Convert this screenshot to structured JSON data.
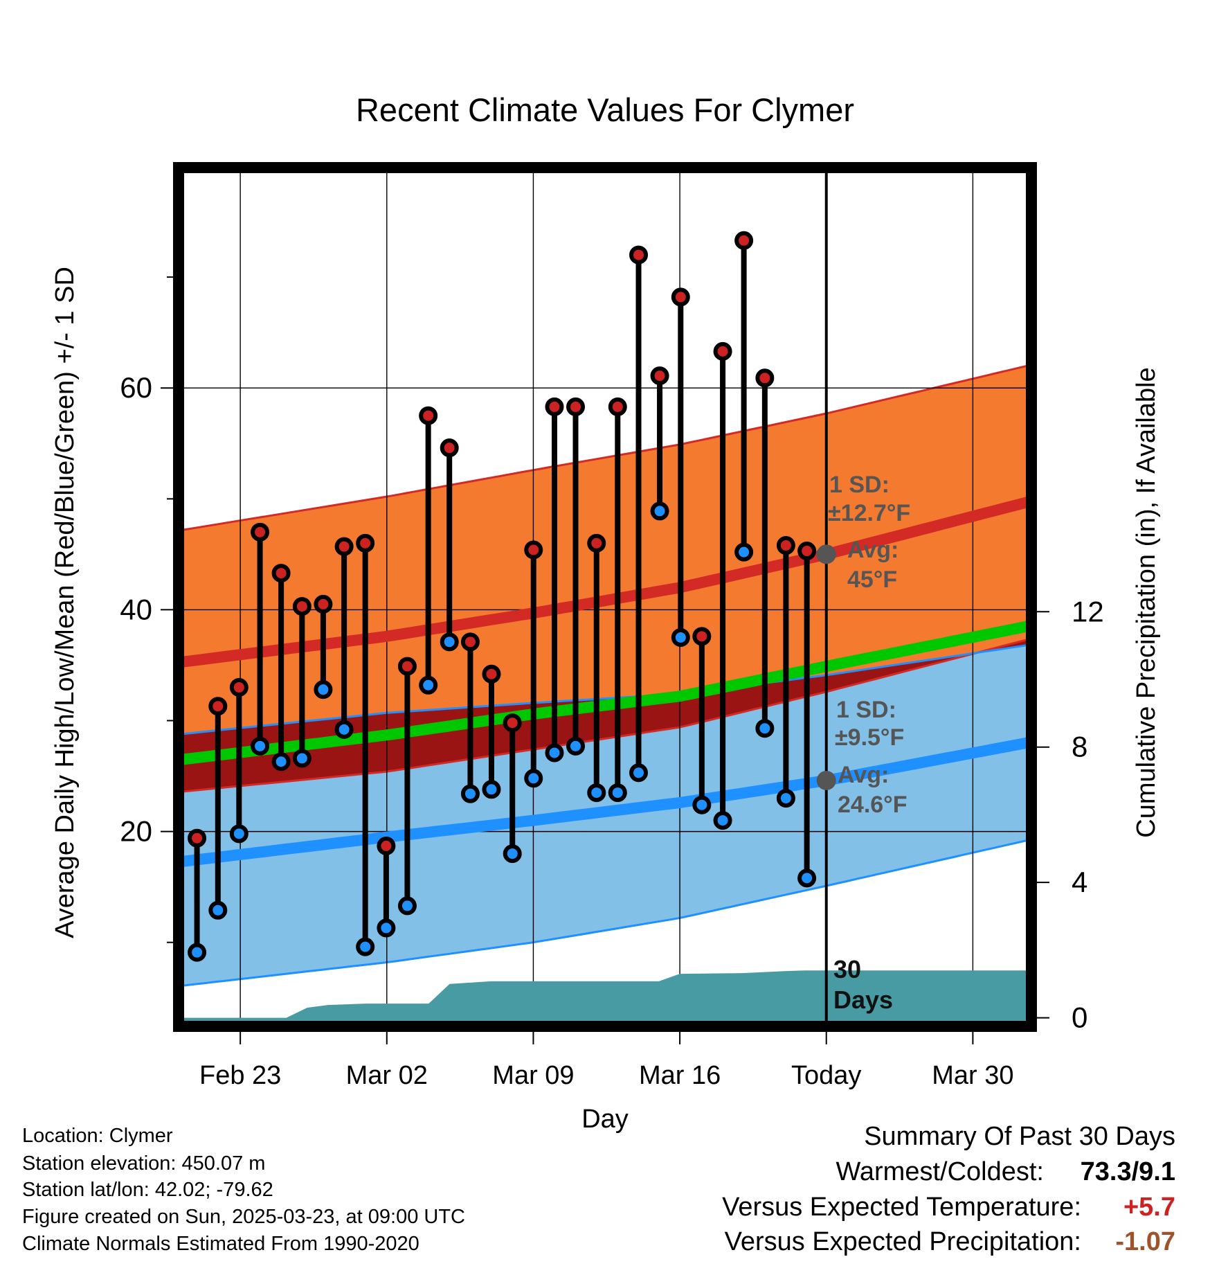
{
  "chart_data": {
    "type": "line",
    "title": "Recent Climate Values For Clymer",
    "xlabel": "Day",
    "ylabel_left": "Average Daily High/Low/Mean (Red/Blue/Green) +/- 1 SD",
    "ylabel_right": "Cumulative Precipitation (in), If Available",
    "x_ticks": [
      {
        "day": 2,
        "label": "Feb 23"
      },
      {
        "day": 9,
        "label": "Mar 02"
      },
      {
        "day": 16,
        "label": "Mar 09"
      },
      {
        "day": 23,
        "label": "Mar 16"
      },
      {
        "day": 30,
        "label": "Today"
      },
      {
        "day": 37,
        "label": "Mar 30"
      }
    ],
    "x_range": [
      -0.75,
      39.6
    ],
    "y_left_range": [
      2.8,
      79.5
    ],
    "y_left_ticks": [
      20,
      40,
      60
    ],
    "y_left_minor_ticks": [
      10,
      30,
      50,
      70
    ],
    "y_right_range": [
      -0.13,
      25.0
    ],
    "y_right_ticks": [
      0,
      4,
      8,
      12
    ],
    "grid": true,
    "today_day": 30,
    "normals": {
      "high_avg": [
        [
          -0.75,
          35.3
        ],
        [
          9,
          37.6
        ],
        [
          16,
          39.7
        ],
        [
          23,
          42.0
        ],
        [
          30,
          45.0
        ],
        [
          39.6,
          49.7
        ]
      ],
      "high_upper": [
        [
          -0.75,
          47.2
        ],
        [
          9,
          50.2
        ],
        [
          16,
          52.6
        ],
        [
          23,
          54.9
        ],
        [
          30,
          57.7
        ],
        [
          39.6,
          62.0
        ]
      ],
      "high_lower": [
        [
          -0.75,
          23.6
        ],
        [
          9,
          25.4
        ],
        [
          16,
          27.4
        ],
        [
          23,
          29.4
        ],
        [
          30,
          32.6
        ],
        [
          39.6,
          37.3
        ]
      ],
      "low_avg": [
        [
          -0.75,
          17.3
        ],
        [
          9,
          19.5
        ],
        [
          16,
          21.0
        ],
        [
          23,
          22.6
        ],
        [
          30,
          24.6
        ],
        [
          39.6,
          28.0
        ]
      ],
      "low_upper": [
        [
          -0.75,
          28.8
        ],
        [
          9,
          30.7
        ],
        [
          16,
          31.6
        ],
        [
          23,
          32.4
        ],
        [
          30,
          34.1
        ],
        [
          39.6,
          36.8
        ]
      ],
      "low_lower": [
        [
          -0.75,
          6.1
        ],
        [
          9,
          8.2
        ],
        [
          16,
          10.0
        ],
        [
          23,
          12.2
        ],
        [
          30,
          15.1
        ],
        [
          39.6,
          19.2
        ]
      ],
      "mean_avg": [
        [
          -0.75,
          26.5
        ],
        [
          9,
          28.7
        ],
        [
          16,
          30.6
        ],
        [
          23,
          32.2
        ],
        [
          30,
          34.9
        ],
        [
          39.6,
          38.5
        ]
      ]
    },
    "series": [
      {
        "name": "High",
        "color": "#cc2222",
        "values": [
          [
            -0.07,
            19.4
          ],
          [
            0.93,
            31.3
          ],
          [
            1.94,
            33.0
          ],
          [
            2.94,
            47.0
          ],
          [
            3.95,
            43.3
          ],
          [
            4.95,
            40.3
          ],
          [
            5.96,
            40.5
          ],
          [
            6.96,
            45.7
          ],
          [
            7.97,
            46.0
          ],
          [
            8.97,
            18.7
          ],
          [
            9.98,
            34.9
          ],
          [
            10.98,
            57.5
          ],
          [
            11.99,
            54.6
          ],
          [
            12.99,
            37.1
          ],
          [
            14.0,
            34.2
          ],
          [
            15.0,
            29.8
          ],
          [
            16.01,
            45.4
          ],
          [
            17.01,
            58.3
          ],
          [
            18.02,
            58.3
          ],
          [
            19.02,
            46.0
          ],
          [
            20.03,
            58.3
          ],
          [
            21.03,
            72.0
          ],
          [
            22.04,
            61.1
          ],
          [
            23.04,
            68.2
          ],
          [
            24.05,
            37.6
          ],
          [
            25.05,
            63.3
          ],
          [
            26.06,
            73.3
          ],
          [
            27.06,
            60.9
          ],
          [
            28.07,
            45.8
          ],
          [
            29.07,
            45.3
          ]
        ]
      },
      {
        "name": "Low",
        "color": "#1e90ff",
        "values": [
          [
            -0.07,
            9.1
          ],
          [
            0.93,
            12.9
          ],
          [
            1.94,
            19.8
          ],
          [
            2.94,
            27.7
          ],
          [
            3.95,
            26.3
          ],
          [
            4.95,
            26.6
          ],
          [
            5.96,
            32.8
          ],
          [
            6.96,
            29.2
          ],
          [
            7.97,
            9.6
          ],
          [
            8.97,
            11.3
          ],
          [
            9.98,
            13.3
          ],
          [
            10.98,
            33.2
          ],
          [
            11.99,
            37.1
          ],
          [
            12.99,
            23.4
          ],
          [
            14.0,
            23.8
          ],
          [
            15.0,
            18.0
          ],
          [
            16.01,
            24.8
          ],
          [
            17.01,
            27.1
          ],
          [
            18.02,
            27.7
          ],
          [
            19.02,
            23.5
          ],
          [
            20.03,
            23.5
          ],
          [
            21.03,
            25.3
          ],
          [
            22.04,
            48.9
          ],
          [
            23.04,
            37.5
          ],
          [
            24.05,
            22.4
          ],
          [
            25.05,
            21.0
          ],
          [
            26.06,
            45.2
          ],
          [
            27.06,
            29.3
          ],
          [
            28.07,
            23.0
          ],
          [
            29.07,
            15.8
          ]
        ]
      },
      {
        "name": "Cumulative Precipitation",
        "color": "#489aa3",
        "values": [
          [
            -0.75,
            0
          ],
          [
            4.2,
            0
          ],
          [
            5.2,
            0.3
          ],
          [
            6.2,
            0.38
          ],
          [
            8.0,
            0.42
          ],
          [
            9.5,
            0.42
          ],
          [
            11.0,
            0.42
          ],
          [
            12.0,
            1.0
          ],
          [
            14.0,
            1.08
          ],
          [
            17.0,
            1.08
          ],
          [
            22.0,
            1.08
          ],
          [
            23.0,
            1.3
          ],
          [
            26.0,
            1.32
          ],
          [
            28.0,
            1.38
          ],
          [
            29.0,
            1.4
          ],
          [
            39.6,
            1.4
          ]
        ]
      }
    ],
    "annotations": {
      "high_sd_label": "1 SD:",
      "high_sd_value": "±12.7°F",
      "high_avg_label": "Avg:",
      "high_avg_value": "45°F",
      "high_avg_marker": 45.0,
      "low_sd_label": "1 SD:",
      "low_sd_value": "±9.5°F",
      "low_avg_label": "Avg:",
      "low_avg_value": "24.6°F",
      "low_avg_marker": 24.6,
      "precip_days_number": "30",
      "precip_days_word": "Days"
    },
    "colors": {
      "high_band": "#f47a30",
      "high_band_edge": "#d42a26",
      "high_line": "#d42a26",
      "low_band": "#82c0e8",
      "low_band_edge": "#1e90ff",
      "low_line": "#1e90ff",
      "overlap_band": "#9a1414",
      "mean_line": "#00c800",
      "precip_fill": "#489aa3",
      "annotation_text": "#555555"
    }
  },
  "footer": {
    "location": "Location: Clymer",
    "elevation": "Station elevation: 450.07 m",
    "latlon": "Station lat/lon: 42.02; -79.62",
    "created": "Figure created on Sun, 2025-03-23, at 09:00 UTC",
    "normals": "Climate Normals Estimated From 1990-2020"
  },
  "summary": {
    "title": "Summary Of Past 30 Days",
    "warm_cold_label": "Warmest/Coldest:",
    "warm_cold_value": "73.3/9.1",
    "temp_label": "Versus Expected Temperature:",
    "temp_value": "+5.7",
    "temp_color": "#cc2222",
    "precip_label": "Versus Expected Precipitation:",
    "precip_value": "-1.07",
    "precip_color": "#a0522d"
  }
}
